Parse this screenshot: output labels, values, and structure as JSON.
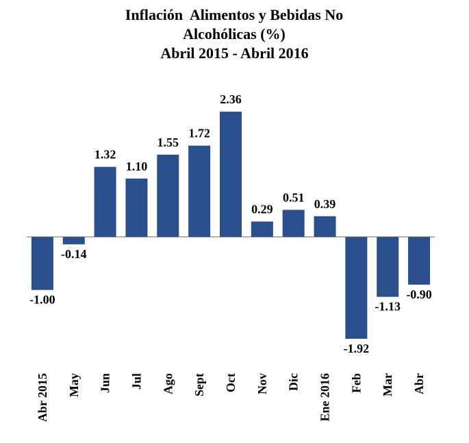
{
  "chart_data": {
    "type": "bar",
    "title": "Inflación  Alimentos y Bebidas No Alcohólicas (%)",
    "subtitle": "Abril 2015 - Abril 2016",
    "categories": [
      "Abr 2015",
      "May",
      "Jun",
      "Jul",
      "Ago",
      "Sept",
      "Oct",
      "Nov",
      "Dic",
      "Ene 2016",
      "Feb",
      "Mar",
      "Abr"
    ],
    "values": [
      -1,
      -0.14,
      1.32,
      1.1,
      1.55,
      1.72,
      2.36,
      0.29,
      0.51,
      0.39,
      -1.92,
      -1.13,
      -0.9
    ],
    "value_labels": [
      "-1.00",
      "-0.14",
      "1.32",
      "1.10",
      "1.55",
      "1.72",
      "2.36",
      "0.29",
      "0.51",
      "0.39",
      "-1.92",
      "-1.13",
      "-0.90"
    ],
    "color": "#2b4f8c",
    "ylim": [
      -2.2,
      2.6
    ]
  }
}
